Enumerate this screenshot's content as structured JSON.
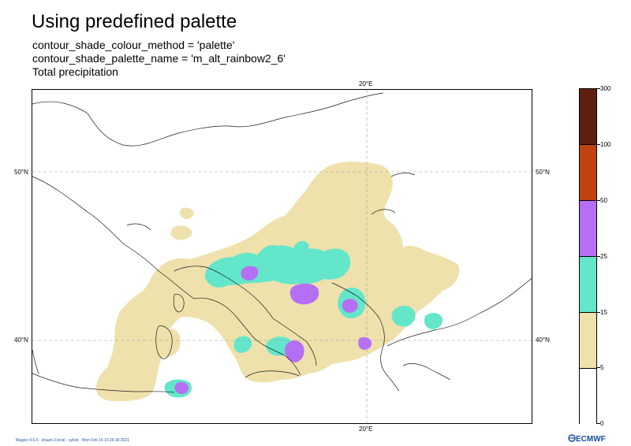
{
  "header": {
    "title": "Using predefined palette",
    "line1": "contour_shade_colour_method = 'palette'",
    "line2": "contour_shade_palette_name = 'm_alt_rainbow2_6'",
    "line3": "Total precipitation"
  },
  "axes": {
    "lon_top": "20°E",
    "lon_bottom": "20°E",
    "lat_50_left": "50°N",
    "lat_50_right": "50°N",
    "lat_40_left": "40°N",
    "lat_40_right": "40°N"
  },
  "legend": {
    "levels": [
      "0",
      "5",
      "15",
      "25",
      "50",
      "100",
      "300"
    ],
    "colors": [
      "#ffffff",
      "#efe1ac",
      "#63e6c9",
      "#b56ff5",
      "#c2430f",
      "#5e200e"
    ]
  },
  "footer": {
    "text": "Magics 4.6.0 - shaun-2.local - sylvie - Mon Feb 15 13:26:18 2021",
    "logo": "ECMWF"
  }
}
